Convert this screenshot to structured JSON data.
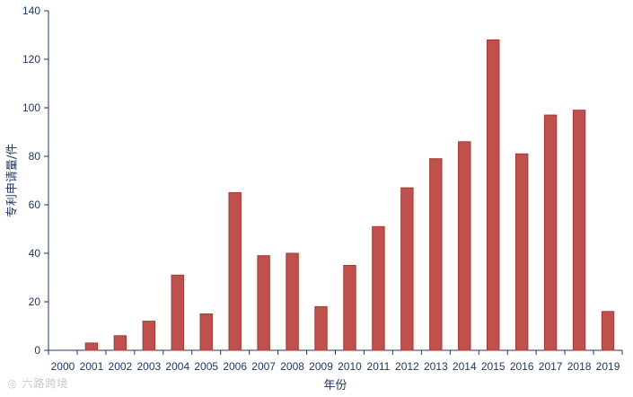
{
  "chart_data": {
    "type": "bar",
    "xlabel": "年份",
    "ylabel": "专利申请量/件",
    "ylim": [
      0,
      140
    ],
    "yticks": [
      0,
      20,
      40,
      60,
      80,
      100,
      120,
      140
    ],
    "categories": [
      "2000",
      "2001",
      "2002",
      "2003",
      "2004",
      "2005",
      "2006",
      "2007",
      "2008",
      "2009",
      "2010",
      "2011",
      "2012",
      "2013",
      "2014",
      "2015",
      "2016",
      "2017",
      "2018",
      "2019"
    ],
    "values": [
      0,
      3,
      6,
      12,
      31,
      15,
      65,
      39,
      40,
      18,
      35,
      51,
      67,
      79,
      86,
      128,
      81,
      97,
      99,
      16
    ],
    "bar_color": "#c0504d",
    "bar_edge_color": "#a33a31",
    "axis_color": "#1f3864",
    "grid": false,
    "legend": "none"
  },
  "watermark": {
    "text": "六路跨境",
    "icon": "camera-icon"
  }
}
